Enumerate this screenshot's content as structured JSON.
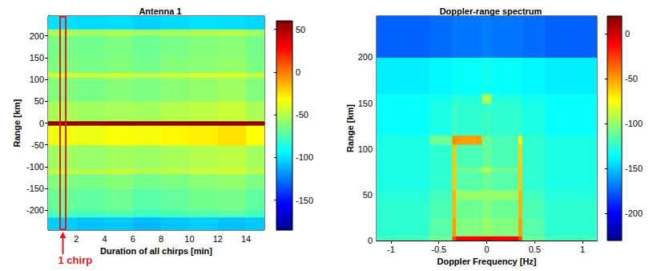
{
  "chart_data": [
    {
      "type": "heatmap",
      "title": "Antenna 1",
      "x_label": "Duration of all chirps [min]",
      "y_label": "Range [km]",
      "xlim": [
        0,
        15.3
      ],
      "xticks": [
        2,
        4,
        6,
        8,
        10,
        12,
        14
      ],
      "ylim": [
        -245,
        245
      ],
      "yticks": [
        -200,
        -150,
        -100,
        -50,
        0,
        50,
        100,
        150,
        200
      ],
      "x_edges": [
        0,
        2,
        4,
        6,
        8,
        10,
        12,
        14,
        15.3
      ],
      "y_edges": [
        -245,
        -215,
        -200,
        -150,
        -115,
        -105,
        -50,
        -5,
        5,
        50,
        105,
        115,
        150,
        200,
        215,
        245
      ],
      "cells": [
        [
          -105,
          -108,
          -106,
          -110,
          -107,
          -105,
          -108,
          -106
        ],
        [
          -75,
          -78,
          -76,
          -80,
          -77,
          -75,
          -74,
          -78
        ],
        [
          -68,
          -70,
          -67,
          -72,
          -69,
          -66,
          -65,
          -70
        ],
        [
          -62,
          -64,
          -61,
          -65,
          -63,
          -60,
          -58,
          -63
        ],
        [
          -45,
          -47,
          -44,
          -48,
          -46,
          -43,
          -42,
          -46
        ],
        [
          -55,
          -57,
          -54,
          -56,
          -53,
          -50,
          -48,
          -54
        ],
        [
          -35,
          -37,
          -33,
          -34,
          -30,
          -28,
          -25,
          -32
        ],
        [
          55,
          55,
          56,
          55,
          56,
          57,
          56,
          55
        ],
        [
          -52,
          -55,
          -53,
          -54,
          -50,
          -48,
          -45,
          -52
        ],
        [
          -62,
          -64,
          -61,
          -63,
          -60,
          -58,
          -55,
          -62
        ],
        [
          -42,
          -44,
          -41,
          -45,
          -43,
          -40,
          -40,
          -44
        ],
        [
          -62,
          -64,
          -62,
          -65,
          -61,
          -60,
          -57,
          -63
        ],
        [
          -64,
          -66,
          -63,
          -67,
          -64,
          -62,
          -60,
          -65
        ],
        [
          -52,
          -55,
          -53,
          -56,
          -54,
          -52,
          -50,
          -55
        ],
        [
          -100,
          -102,
          -101,
          -104,
          -102,
          -100,
          -101,
          -103
        ]
      ],
      "color_range": [
        -185,
        60
      ],
      "color_ticks": [
        -150,
        -100,
        -50,
        0,
        50
      ],
      "annotation": {
        "text": "1 chirp",
        "x_range": [
          0.85,
          1.25
        ],
        "color": "#e3191c"
      }
    },
    {
      "type": "heatmap",
      "title": "Doppler-range spectrum",
      "x_label": "Doppler Frequency [Hz]",
      "y_label": "Range [km]",
      "xlim": [
        -1.15,
        1.15
      ],
      "xticks": [
        -1,
        -0.5,
        0,
        0.5,
        1
      ],
      "ylim": [
        0,
        245
      ],
      "yticks": [
        0,
        50,
        100,
        150,
        200
      ],
      "x_edges": [
        -1.15,
        -0.6,
        -0.36,
        -0.32,
        -0.05,
        0.05,
        0.33,
        0.37,
        0.6,
        1.15
      ],
      "y_edges": [
        0,
        5,
        25,
        45,
        55,
        75,
        80,
        105,
        115,
        150,
        160,
        200,
        245
      ],
      "cells": [
        [
          -120,
          -110,
          -30,
          -10,
          -5,
          -10,
          -30,
          -110,
          -120
        ],
        [
          -125,
          -115,
          -50,
          -105,
          -100,
          -105,
          -50,
          -115,
          -125
        ],
        [
          -125,
          -118,
          -55,
          -110,
          -105,
          -110,
          -55,
          -118,
          -125
        ],
        [
          -128,
          -120,
          -55,
          -100,
          -100,
          -100,
          -55,
          -120,
          -128
        ],
        [
          -130,
          -125,
          -60,
          -115,
          -110,
          -115,
          -60,
          -125,
          -130
        ],
        [
          -130,
          -125,
          -60,
          -110,
          -90,
          -110,
          -60,
          -125,
          -130
        ],
        [
          -130,
          -125,
          -60,
          -118,
          -112,
          -118,
          -62,
          -125,
          -130
        ],
        [
          -130,
          -110,
          -45,
          -50,
          -110,
          -118,
          -70,
          -125,
          -130
        ],
        [
          -135,
          -130,
          -120,
          -125,
          -122,
          -125,
          -125,
          -130,
          -135
        ],
        [
          -135,
          -132,
          -128,
          -128,
          -95,
          -128,
          -130,
          -132,
          -135
        ],
        [
          -140,
          -138,
          -135,
          -135,
          -132,
          -135,
          -135,
          -138,
          -140
        ],
        [
          -175,
          -172,
          -170,
          -170,
          -168,
          -170,
          -170,
          -172,
          -175
        ]
      ],
      "color_range": [
        -230,
        20
      ],
      "color_ticks": [
        -200,
        -150,
        -100,
        -50,
        0
      ]
    }
  ]
}
